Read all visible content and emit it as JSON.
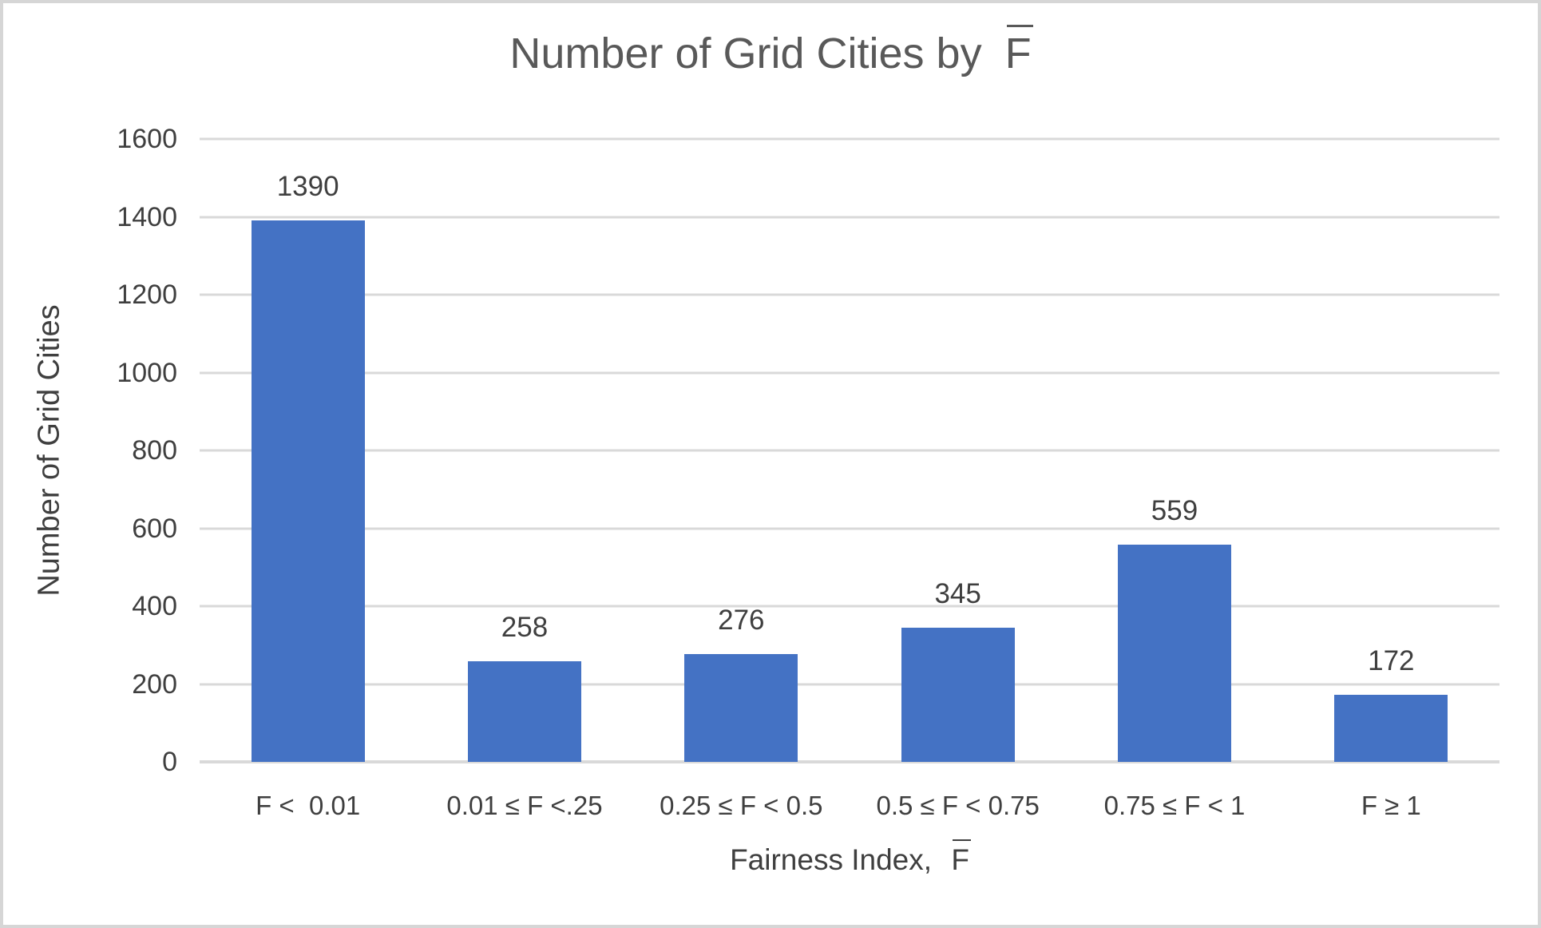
{
  "window": {
    "background": "#ffffff",
    "border_color": "#d6d6d6"
  },
  "chart_data": {
    "type": "bar",
    "title_full": "Number of Grid Cities by F̄",
    "title_prefix": "Number of Grid Cities by ",
    "variable_symbol": "F",
    "categories": [
      "F <  0.01",
      "0.01 ≤ F <.25",
      "0.25 ≤ F < 0.5",
      "0.5 ≤ F < 0.75",
      "0.75 ≤ F < 1",
      "F ≥ 1"
    ],
    "values": [
      1390,
      258,
      276,
      345,
      559,
      172
    ],
    "data_labels": [
      "1390",
      "258",
      "276",
      "345",
      "559",
      "172"
    ],
    "xlabel_full": "Fairness Index, F̄",
    "xlabel_prefix": "Fairness Index, ",
    "ylabel": "Number of Grid Cities",
    "ylim": [
      0,
      1600
    ],
    "yticks": [
      0,
      200,
      400,
      600,
      800,
      1000,
      1200,
      1400,
      1600
    ],
    "grid": true,
    "legend": false,
    "bar_color": "#4472c4",
    "gridline_color": "#d9d9d9",
    "axis_text_color": "#3f3f3f",
    "title_color": "#595959"
  }
}
